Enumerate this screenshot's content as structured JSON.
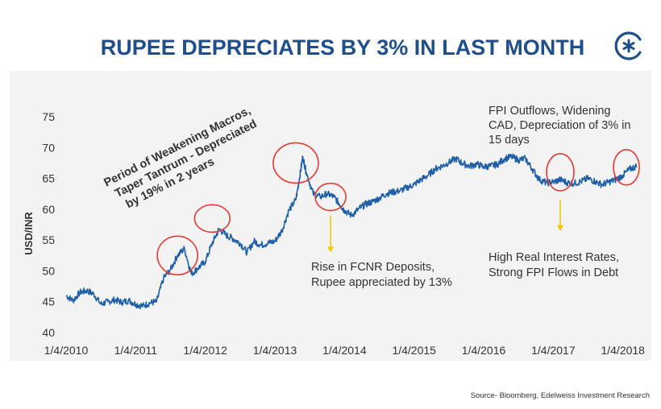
{
  "chart_data": {
    "type": "line",
    "title": "RUPEE DEPRECIATES BY 3% IN LAST MONTH",
    "ylabel": "USD/INR",
    "xlabel": "",
    "ylim": [
      40,
      75
    ],
    "yticks": [
      40,
      45,
      50,
      55,
      60,
      65,
      70,
      75
    ],
    "x_tick_labels": [
      "1/4/2010",
      "1/4/2011",
      "1/4/2012",
      "1/4/2013",
      "1/4/2014",
      "1/4/2015",
      "1/4/2016",
      "1/4/2017",
      "1/4/2018"
    ],
    "xlim": [
      2010.25,
      2018.45
    ],
    "grid": false,
    "line_color": "#1f5fa8",
    "highlight_color": "#e53935",
    "arrow_color": "#f5c400",
    "series": [
      {
        "name": "",
        "x": [
          2010.25,
          2010.35,
          2010.45,
          2010.55,
          2010.65,
          2010.75,
          2010.85,
          2010.95,
          2011.05,
          2011.15,
          2011.25,
          2011.35,
          2011.45,
          2011.55,
          2011.65,
          2011.75,
          2011.85,
          2011.95,
          2012.05,
          2012.15,
          2012.25,
          2012.35,
          2012.45,
          2012.55,
          2012.65,
          2012.75,
          2012.85,
          2012.95,
          2013.05,
          2013.15,
          2013.25,
          2013.35,
          2013.45,
          2013.55,
          2013.6,
          2013.65,
          2013.7,
          2013.8,
          2013.9,
          2014.0,
          2014.1,
          2014.2,
          2014.25,
          2014.35,
          2014.45,
          2014.55,
          2014.65,
          2014.75,
          2014.85,
          2014.95,
          2015.05,
          2015.15,
          2015.25,
          2015.35,
          2015.45,
          2015.55,
          2015.65,
          2015.75,
          2015.85,
          2015.95,
          2016.05,
          2016.15,
          2016.25,
          2016.35,
          2016.45,
          2016.55,
          2016.65,
          2016.75,
          2016.85,
          2016.95,
          2017.05,
          2017.15,
          2017.25,
          2017.35,
          2017.45,
          2017.55,
          2017.65,
          2017.75,
          2017.85,
          2017.95,
          2018.05,
          2018.15,
          2018.25,
          2018.35,
          2018.45
        ],
        "values": [
          46.0,
          45.2,
          46.5,
          46.8,
          46.2,
          44.6,
          45.0,
          45.3,
          44.9,
          45.2,
          44.6,
          44.3,
          44.8,
          45.0,
          48.8,
          50.2,
          52.5,
          53.6,
          49.5,
          50.5,
          51.5,
          54.5,
          56.8,
          55.8,
          55.2,
          54.5,
          53.0,
          54.8,
          54.2,
          54.5,
          54.8,
          56.5,
          59.8,
          61.5,
          64.8,
          68.5,
          66.0,
          62.5,
          62.0,
          62.5,
          62.0,
          60.5,
          59.8,
          59.0,
          60.0,
          60.8,
          61.2,
          61.8,
          62.5,
          62.8,
          63.0,
          63.5,
          64.0,
          64.8,
          65.5,
          66.5,
          67.0,
          67.6,
          68.2,
          67.4,
          67.0,
          67.3,
          66.9,
          67.0,
          67.3,
          68.2,
          68.5,
          68.0,
          68.2,
          66.5,
          64.8,
          64.3,
          64.4,
          64.8,
          64.3,
          64.2,
          64.5,
          65.0,
          64.5,
          64.0,
          64.4,
          64.8,
          65.5,
          66.5,
          67.0
        ]
      }
    ],
    "highlight_circles": [
      {
        "x": 2011.85,
        "y": 52.5
      },
      {
        "x": 2012.35,
        "y": 58.5
      },
      {
        "x": 2013.55,
        "y": 67.5
      },
      {
        "x": 2014.05,
        "y": 62.0
      },
      {
        "x": 2017.35,
        "y": 66.0
      },
      {
        "x": 2018.3,
        "y": 66.8
      }
    ],
    "annotations": [
      {
        "lines": [
          "Period of Weakening Macros,",
          "Taper Tantrum - Depreciated",
          "by  19% in 2 years"
        ],
        "rotated": true
      },
      {
        "lines": [
          "FPI Outflows, Widening",
          "CAD, Depreciation of 3% in",
          "15 days"
        ]
      },
      {
        "lines": [
          "Rise in FCNR Deposits,",
          "Rupee appreciated by 13%"
        ]
      },
      {
        "lines": [
          "High Real Interest Rates,",
          "Strong FPI Flows in Debt"
        ]
      }
    ],
    "arrows": [
      {
        "x": 2014.05,
        "y_from": 59.0,
        "y_to": 53.0
      },
      {
        "x": 2017.35,
        "y_from": 61.5,
        "y_to": 56.5
      }
    ],
    "source": "Source- Bloomberg, Edelweiss Investment Research",
    "logo_icon": "asterisk-logo-icon",
    "logo_color": "#1f4e8c"
  }
}
